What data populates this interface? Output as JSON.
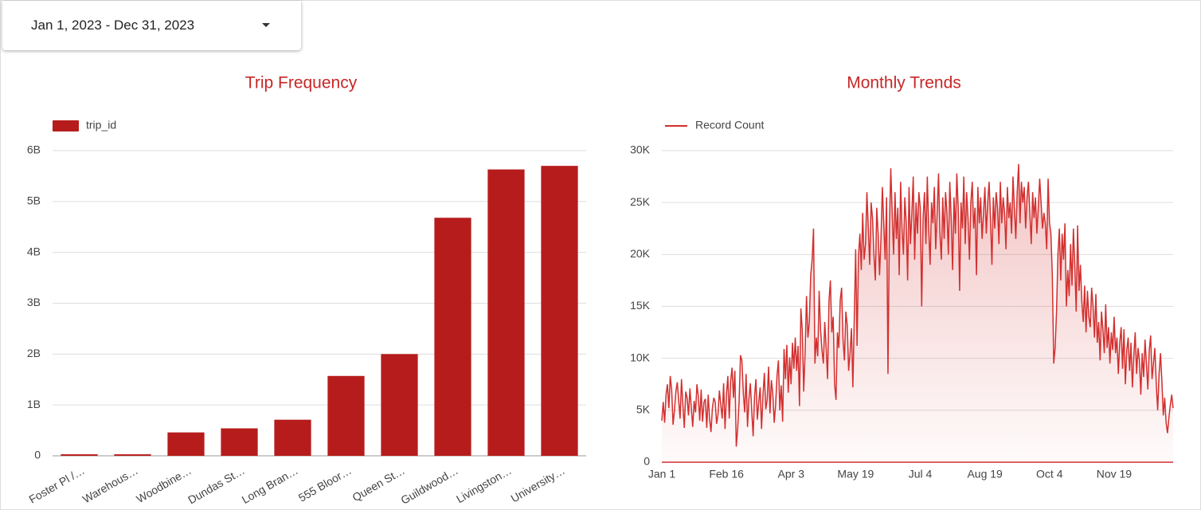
{
  "date_range": "Jan 1, 2023 - Dec 31, 2023",
  "chart_data": [
    {
      "type": "bar",
      "title": "Trip Frequency",
      "legend": "top-left",
      "series": [
        {
          "name": "trip_id",
          "color": "#b71c1c",
          "values": [
            30000000,
            30000000,
            460000000,
            540000000,
            710000000,
            1570000000,
            2000000000,
            4680000000,
            5630000000,
            5700000000
          ]
        }
      ],
      "categories": [
        "Foster Pl /…",
        "Warehous…",
        "Woodbine…",
        "Dundas St…",
        "Long Bran…",
        "555 Bloor…",
        "Queen St…",
        "Guildwood…",
        "Livingston…",
        "University…"
      ],
      "ylim": [
        0,
        6000000000
      ],
      "yticks": [
        0,
        {
          "value": 1000000000,
          "label": "1B"
        },
        {
          "value": 2000000000,
          "label": "2B"
        },
        {
          "value": 3000000000,
          "label": "3B"
        },
        {
          "value": 4000000000,
          "label": "4B"
        },
        {
          "value": 5000000000,
          "label": "5B"
        },
        {
          "value": 6000000000,
          "label": "6B"
        }
      ],
      "grid": true
    },
    {
      "type": "line",
      "title": "Monthly Trends",
      "legend": "top-left",
      "area": true,
      "categories": [
        "Jan 1",
        null,
        null,
        null,
        null,
        null,
        null,
        null,
        null,
        null,
        null,
        null,
        null,
        null,
        null,
        null,
        null,
        null,
        null,
        null,
        null,
        null,
        null,
        null,
        null,
        null,
        null,
        null,
        null,
        null,
        null,
        null,
        null,
        null,
        null,
        null,
        null,
        null,
        null,
        null,
        null,
        null,
        null,
        null,
        null,
        null,
        "Feb 16",
        null,
        null,
        null,
        null,
        null,
        null,
        null,
        null,
        null,
        null,
        null,
        null,
        null,
        null,
        null,
        null,
        null,
        null,
        null,
        null,
        null,
        null,
        null,
        null,
        null,
        null,
        null,
        null,
        null,
        null,
        null,
        null,
        null,
        null,
        null,
        null,
        null,
        null,
        null,
        null,
        null,
        null,
        null,
        null,
        null,
        "Apr 3",
        null,
        null,
        null,
        null,
        null,
        null,
        null,
        null,
        null,
        null,
        null,
        null,
        null,
        null,
        null,
        null,
        null,
        null,
        null,
        null,
        null,
        null,
        null,
        null,
        null,
        null,
        null,
        null,
        null,
        null,
        null,
        null,
        null,
        null,
        null,
        null,
        null,
        null,
        null,
        null,
        null,
        null,
        null,
        null,
        null,
        "May 19",
        null,
        null,
        null,
        null,
        null,
        null,
        null,
        null,
        null,
        null,
        null,
        null,
        null,
        null,
        null,
        null,
        null,
        null,
        null,
        null,
        null,
        null,
        null,
        null,
        null,
        null,
        null,
        null,
        null,
        null,
        null,
        null,
        null,
        null,
        null,
        null,
        null,
        null,
        null,
        null,
        null,
        null,
        null,
        null,
        null,
        "Jul 4",
        null,
        null,
        null,
        null,
        null,
        null,
        null,
        null,
        null,
        null,
        null,
        null,
        null,
        null,
        null,
        null,
        null,
        null,
        null,
        null,
        null,
        null,
        null,
        null,
        null,
        null,
        null,
        null,
        null,
        null,
        null,
        null,
        null,
        null,
        null,
        null,
        null,
        null,
        null,
        null,
        null,
        null,
        null,
        null,
        null,
        "Aug 19",
        null,
        null,
        null,
        null,
        null,
        null,
        null,
        null,
        null,
        null,
        null,
        null,
        null,
        null,
        null,
        null,
        null,
        null,
        null,
        null,
        null,
        null,
        null,
        null,
        null,
        null,
        null,
        null,
        null,
        null,
        null,
        null,
        null,
        null,
        null,
        null,
        null,
        null,
        null,
        null,
        null,
        null,
        null,
        null,
        null,
        "Oct 4",
        null,
        null,
        null,
        null,
        null,
        null,
        null,
        null,
        null,
        null,
        null,
        null,
        null,
        null,
        null,
        null,
        null,
        null,
        null,
        null,
        null,
        null,
        null,
        null,
        null,
        null,
        null,
        null,
        null,
        null,
        null,
        null,
        null,
        null,
        null,
        null,
        null,
        null,
        null,
        null,
        null,
        null,
        null,
        null,
        null,
        "Nov 19",
        null,
        null,
        null,
        null,
        null,
        null,
        null,
        null,
        null,
        null,
        null,
        null,
        null,
        null,
        null,
        null,
        null,
        null,
        null,
        null,
        null,
        null,
        null,
        null,
        null,
        null,
        null,
        null,
        null,
        null,
        null,
        null,
        null,
        null,
        null,
        null,
        null,
        null,
        null,
        null,
        null,
        null
      ],
      "series": [
        {
          "name": "Record Count",
          "color": "#d32f2f",
          "values": [
            4000,
            5800,
            3800,
            6500,
            7500,
            5200,
            8300,
            7000,
            3600,
            5000,
            6800,
            7700,
            6000,
            4200,
            8000,
            5500,
            3300,
            6800,
            6200,
            4500,
            7100,
            5200,
            3400,
            5900,
            4800,
            7500,
            6300,
            4000,
            7000,
            3900,
            5800,
            6100,
            3300,
            6500,
            4200,
            2900,
            5200,
            6200,
            5800,
            3700,
            4600,
            6900,
            5500,
            4200,
            7600,
            3200,
            6500,
            8300,
            4200,
            7800,
            9100,
            6200,
            8800,
            1500,
            3200,
            5800,
            10300,
            9800,
            6700,
            4800,
            8500,
            3400,
            6100,
            7600,
            5000,
            2500,
            6300,
            8000,
            4100,
            5800,
            7200,
            3200,
            6400,
            8600,
            5100,
            6000,
            9200,
            4700,
            7900,
            6600,
            3800,
            5500,
            8300,
            9800,
            5000,
            7400,
            3900,
            10900,
            8000,
            11300,
            6700,
            10100,
            7500,
            11500,
            9000,
            12000,
            8800,
            11200,
            5400,
            14800,
            12700,
            6800,
            10500,
            16000,
            12000,
            13500,
            18000,
            19500,
            22500,
            9500,
            12000,
            10200,
            16500,
            12800,
            10800,
            9500,
            13500,
            11000,
            8000,
            15500,
            17500,
            12500,
            14000,
            7500,
            6000,
            12500,
            11000,
            15600,
            16800,
            11800,
            9800,
            14500,
            13200,
            8800,
            10500,
            12900,
            7200,
            13800,
            20500,
            11200,
            19800,
            22000,
            18500,
            24000,
            19500,
            21000,
            26000,
            22500,
            19000,
            25000,
            23500,
            20000,
            17500,
            24500,
            22000,
            18000,
            21500,
            26500,
            23000,
            19500,
            25500,
            8500,
            22500,
            28300,
            24000,
            20000,
            26000,
            21500,
            24500,
            18000,
            27000,
            22500,
            20000,
            25500,
            23000,
            17500,
            26500,
            21000,
            24000,
            27500,
            19500,
            25000,
            22000,
            26000,
            24500,
            15000,
            23500,
            26000,
            21000,
            27500,
            22500,
            19000,
            25000,
            23000,
            26500,
            20500,
            24000,
            27800,
            22000,
            19500,
            25500,
            21500,
            26000,
            24000,
            20000,
            27000,
            23500,
            18500,
            25500,
            22000,
            27800,
            24500,
            16500,
            25000,
            22500,
            27500,
            21000,
            26000,
            23500,
            19500,
            25000,
            27000,
            22500,
            24500,
            18000,
            26500,
            23000,
            25500,
            21500,
            24000,
            26500,
            22000,
            25000,
            27000,
            23500,
            19000,
            25500,
            22500,
            26000,
            24500,
            21000,
            27000,
            23000,
            25500,
            24000,
            20500,
            26500,
            23500,
            25000,
            22000,
            27500,
            24500,
            21500,
            26000,
            28700,
            23000,
            27000,
            25000,
            26500,
            22500,
            25500,
            27000,
            24000,
            21000,
            26000,
            23500,
            25500,
            22000,
            24500,
            27300,
            25000,
            22500,
            24000,
            23000,
            20500,
            27300,
            23000,
            22000,
            18000,
            9500,
            11000,
            14500,
            20000,
            22500,
            17500,
            22000,
            19500,
            23000,
            15000,
            18500,
            16000,
            21000,
            17000,
            22500,
            19000,
            14500,
            22800,
            16500,
            19000,
            15500,
            13500,
            17000,
            12500,
            16500,
            14000,
            13000,
            16800,
            15000,
            12000,
            16200,
            11500,
            13500,
            9800,
            14500,
            12800,
            10500,
            15200,
            11000,
            13000,
            9500,
            12500,
            10800,
            14000,
            10500,
            12000,
            8500,
            11500,
            13000,
            9000,
            12800,
            7500,
            10800,
            12000,
            8800,
            11500,
            7200,
            10200,
            12500,
            8500,
            11000,
            9800,
            6500,
            10500,
            8200,
            11800,
            9500,
            7000,
            10800,
            12200,
            8000,
            9500,
            11000,
            7500,
            5000,
            8500,
            10500,
            7800,
            4500,
            6200,
            3800,
            2800,
            4300,
            5500,
            6500,
            5200
          ]
        }
      ],
      "ylim": [
        0,
        30000
      ],
      "yticks": [
        0,
        {
          "value": 5000,
          "label": "5K"
        },
        {
          "value": 10000,
          "label": "10K"
        },
        {
          "value": 15000,
          "label": "15K"
        },
        {
          "value": 20000,
          "label": "20K"
        },
        {
          "value": 25000,
          "label": "25K"
        },
        {
          "value": 30000,
          "label": "30K"
        }
      ],
      "grid": true
    }
  ]
}
